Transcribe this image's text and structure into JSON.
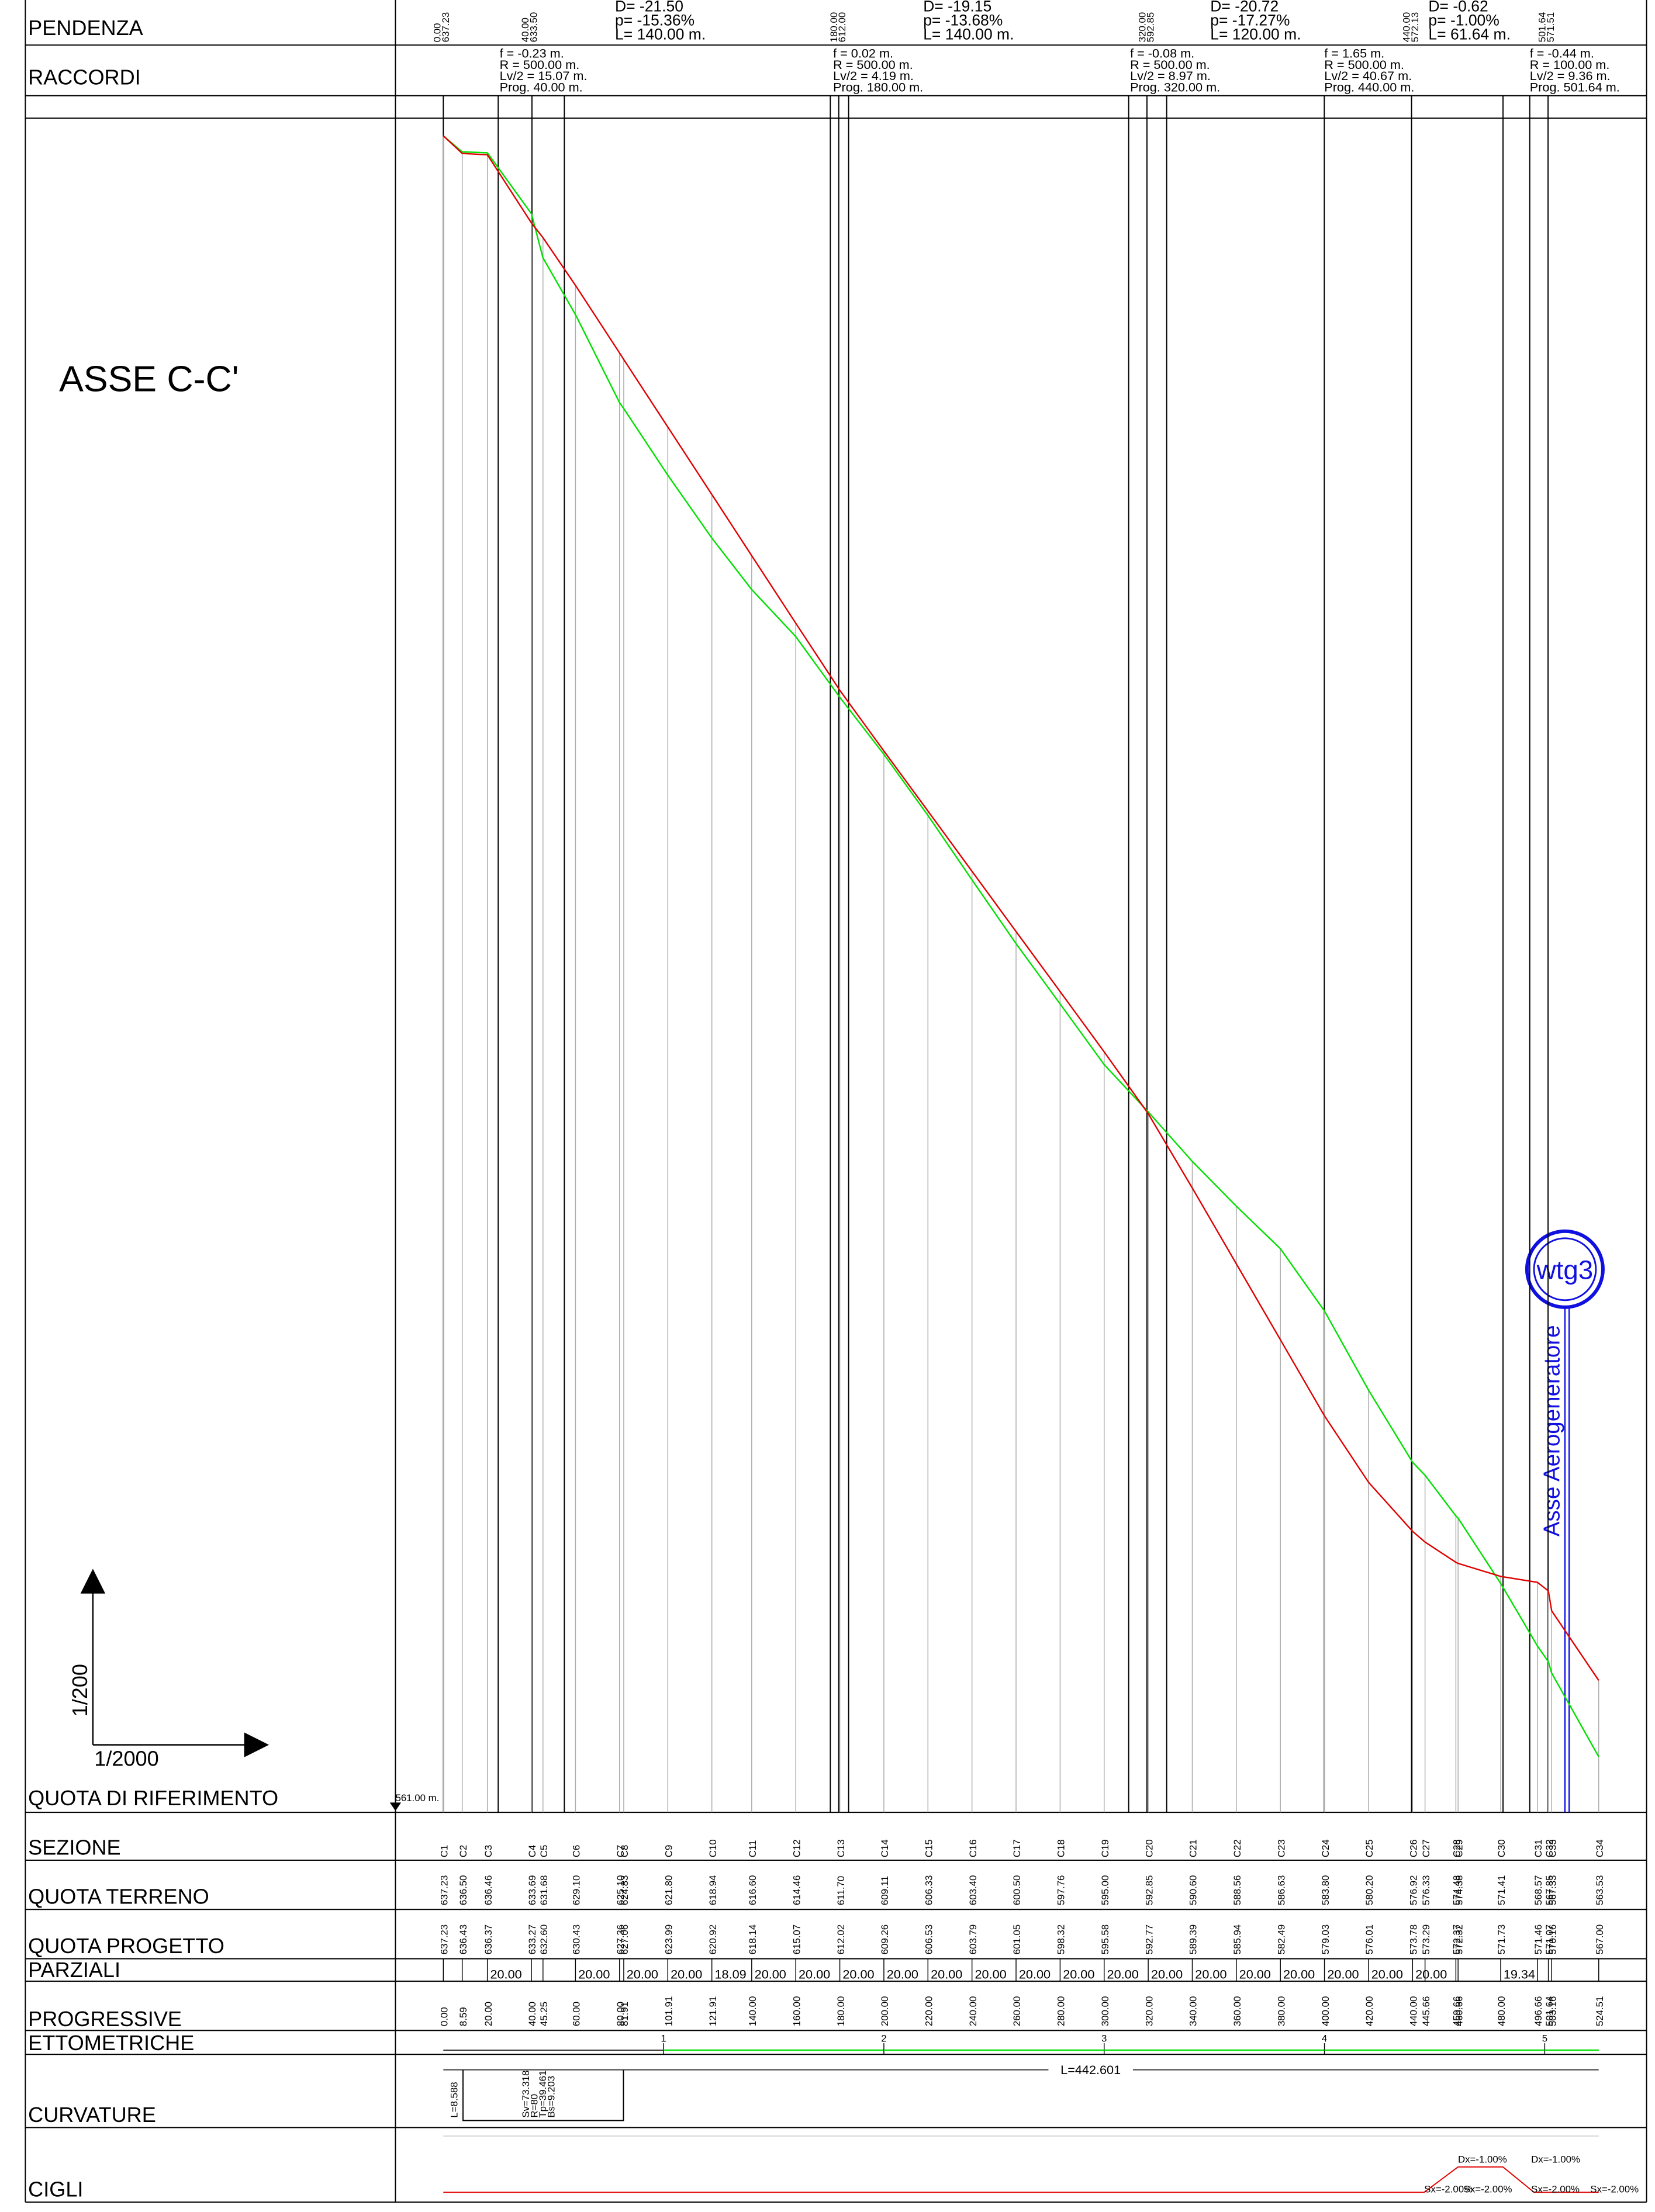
{
  "title": "ASSE C-C'",
  "rows": {
    "pendenza": "PENDENZA",
    "raccordi": "RACCORDI",
    "riferimento": "QUOTA DI RIFERIMENTO",
    "sezione": "SEZIONE",
    "terreno": "QUOTA TERRENO",
    "progetto": "QUOTA PROGETTO",
    "parziali": "PARZIALI",
    "progressive": "PROGRESSIVE",
    "ettometriche": "ETTOMETRICHE",
    "curvature": "CURVATURE",
    "cigli": "CIGLI"
  },
  "reference": "561.00 m.",
  "scale": {
    "vertical": "1/200",
    "horizontal": "1/2000"
  },
  "sections": {
    "names": [
      "C1",
      "C2",
      "C3",
      "C4",
      "C5",
      "C6",
      "C7",
      "C8",
      "C9",
      "C10",
      "C11",
      "C12",
      "C13",
      "C14",
      "C15",
      "C16",
      "C17",
      "C18",
      "C19",
      "C20",
      "C21",
      "C22",
      "C23",
      "C24",
      "C25",
      "C26",
      "C27",
      "C28",
      "C29",
      "C30",
      "C31",
      "C32",
      "C33",
      "C34"
    ],
    "progressive": [
      "0.00",
      "8.59",
      "20.00",
      "40.00",
      "45.25",
      "60.00",
      "80.00",
      "81.91",
      "101.91",
      "121.91",
      "140.00",
      "160.00",
      "180.00",
      "200.00",
      "220.00",
      "240.00",
      "260.00",
      "280.00",
      "300.00",
      "320.00",
      "340.00",
      "360.00",
      "380.00",
      "400.00",
      "420.00",
      "440.00",
      "445.66",
      "459.66",
      "460.66",
      "480.00",
      "496.66",
      "501.64",
      "503.16",
      "524.51"
    ],
    "terreno": [
      "637.23",
      "636.50",
      "636.46",
      "633.69",
      "631.68",
      "629.10",
      "625.10",
      "624.83",
      "621.80",
      "618.94",
      "616.60",
      "614.46",
      "611.70",
      "609.11",
      "606.33",
      "603.40",
      "600.50",
      "597.76",
      "595.00",
      "592.85",
      "590.60",
      "588.56",
      "586.63",
      "583.80",
      "580.20",
      "576.92",
      "576.33",
      "574.48",
      "574.38",
      "571.41",
      "568.57",
      "567.85",
      "567.33",
      "563.53"
    ],
    "progetto": [
      "637.23",
      "636.43",
      "636.37",
      "633.27",
      "632.60",
      "630.43",
      "627.36",
      "627.06",
      "623.99",
      "620.92",
      "618.14",
      "615.07",
      "612.02",
      "609.26",
      "606.53",
      "603.79",
      "601.05",
      "598.32",
      "595.58",
      "592.77",
      "589.39",
      "585.94",
      "582.49",
      "579.03",
      "576.01",
      "573.78",
      "573.29",
      "572.37",
      "572.32",
      "571.73",
      "571.46",
      "571.07",
      "570.16",
      "567.00"
    ],
    "parziali": [
      null,
      null,
      "20.00",
      null,
      null,
      "20.00",
      null,
      "20.00",
      "20.00",
      "18.09",
      "20.00",
      "20.00",
      "20.00",
      "20.00",
      "20.00",
      "20.00",
      "20.00",
      "20.00",
      "20.00",
      "20.00",
      "20.00",
      "20.00",
      "20.00",
      "20.00",
      "20.00",
      "20.00",
      null,
      null,
      null,
      "19.34",
      null,
      null,
      null
    ]
  },
  "pendenza": [
    [
      "D= -21.50",
      "p= -15.36%",
      "L= 140.00 m."
    ],
    [
      "D= -19.15",
      "p= -13.68%",
      "L= 140.00 m."
    ],
    [
      "D= -20.72",
      "p= -17.27%",
      "L= 120.00 m."
    ],
    [
      "D= -0.62",
      "p= -1.00%",
      "L= 61.64 m."
    ]
  ],
  "vertici": [
    [
      "0.00",
      "637.23"
    ],
    [
      "40.00",
      "633.50"
    ],
    [
      "180.00",
      "612.00"
    ],
    [
      "320.00",
      "592.85"
    ],
    [
      "440.00",
      "572.13"
    ],
    [
      "501.64",
      "571.51"
    ]
  ],
  "raccordi": [
    [
      "f = -0.23 m.",
      "R = 500.00 m.",
      "Lv/2 = 15.07 m.",
      "Prog. 40.00 m."
    ],
    [
      "f = 0.02 m.",
      "R = 500.00 m.",
      "Lv/2 = 4.19 m.",
      "Prog. 180.00 m."
    ],
    [
      "f = -0.08 m.",
      "R = 500.00 m.",
      "Lv/2 = 8.97 m.",
      "Prog. 320.00 m."
    ],
    [
      "f = 1.65 m.",
      "R = 500.00 m.",
      "Lv/2 = 40.67 m.",
      "Prog. 440.00 m."
    ],
    [
      "f = -0.44 m.",
      "R = 100.00 m.",
      "Lv/2 = 9.36 m.",
      "Prog. 501.64 m."
    ]
  ],
  "ettometriche": [
    "1",
    "2",
    "3",
    "4",
    "5"
  ],
  "curvature": {
    "total": "L=442.601",
    "start": "L=8.588",
    "curve": [
      "Sv=73.318",
      "R=80",
      "Tp=39.461",
      "Bs=9.203"
    ]
  },
  "cigli": {
    "dx": [
      "Dx=-1.00%",
      "Dx=-1.00%"
    ],
    "sx": [
      "Sx=-2.00%",
      "Sx=-2.00%",
      "Sx=-2.00%",
      "Sx=-2.00%"
    ]
  },
  "turbine": {
    "id": "wtg3",
    "axis": "Asse Aerogeneratore"
  }
}
